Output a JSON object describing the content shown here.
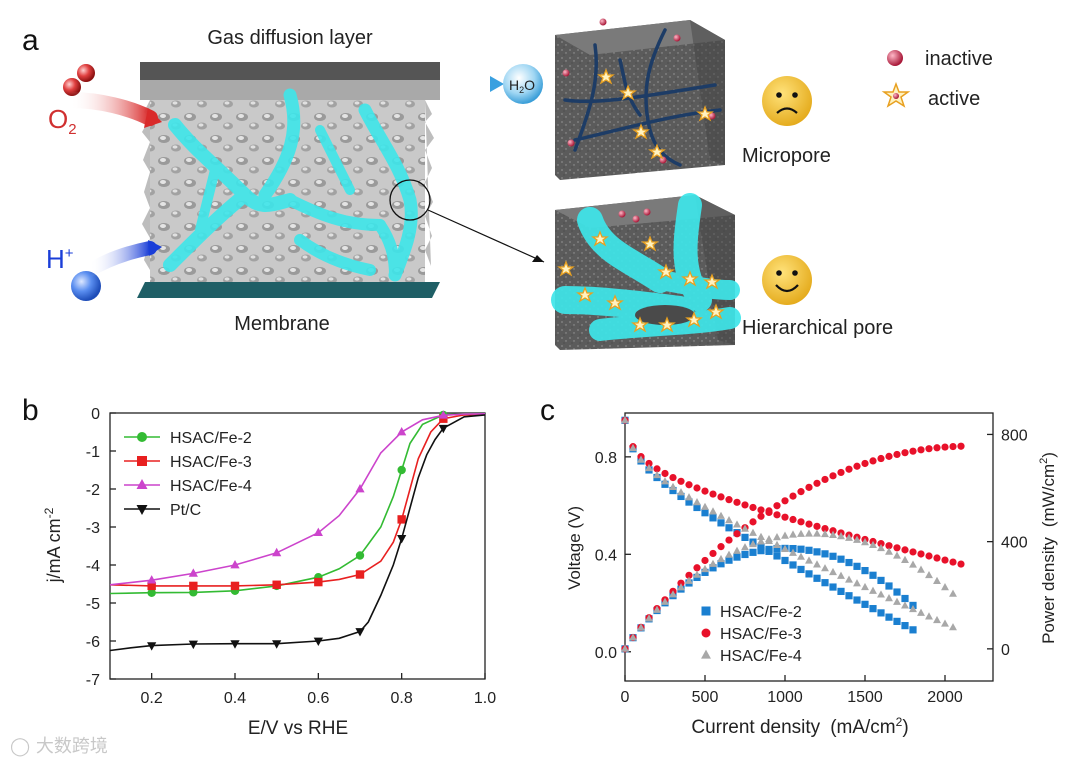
{
  "panel_a": {
    "panel_label": "a",
    "gdl_label": "Gas diffusion layer",
    "o2_label": "O",
    "o2_sub": "2",
    "h_label": "H",
    "h_sup": "+",
    "h2o_label": "H",
    "h2o_sub": "2",
    "h2o_o": "O",
    "membrane_label": "Membrane",
    "micropore_label": "Micropore",
    "hier_label": "Hierarchical pore",
    "legend_inactive": "inactive",
    "legend_active": "active",
    "colors": {
      "channel": "#3ee6ea",
      "inactive": "#c0304a",
      "active": "#e8a020",
      "face": "#f5c230"
    }
  },
  "chart_data": [
    {
      "type": "line",
      "panel_label": "b",
      "xlabel": "E/V vs RHE",
      "ylabel": "j/mA cm",
      "ylabel_sup": "-2",
      "xlim": [
        0.1,
        1.0
      ],
      "ylim": [
        -7,
        0
      ],
      "xticks": [
        "0.2",
        "0.4",
        "0.6",
        "0.8",
        "1.0"
      ],
      "yticks": [
        "0",
        "-1",
        "-2",
        "-3",
        "-4",
        "-5",
        "-6",
        "-7"
      ],
      "legend_position": "top-left",
      "series": [
        {
          "name": "HSAC/Fe-2",
          "color": "#33bb33",
          "marker": "circle",
          "x": [
            0.1,
            0.2,
            0.3,
            0.4,
            0.5,
            0.6,
            0.65,
            0.7,
            0.75,
            0.78,
            0.8,
            0.82,
            0.85,
            0.9,
            0.95,
            1.0
          ],
          "y": [
            -4.75,
            -4.73,
            -4.72,
            -4.68,
            -4.55,
            -4.32,
            -4.1,
            -3.75,
            -3.0,
            -2.2,
            -1.5,
            -0.8,
            -0.3,
            -0.05,
            -0.02,
            -0.02
          ],
          "markers": [
            0.2,
            0.3,
            0.4,
            0.5,
            0.6,
            0.7,
            0.8,
            0.9
          ]
        },
        {
          "name": "HSAC/Fe-3",
          "color": "#e82020",
          "marker": "square",
          "x": [
            0.1,
            0.2,
            0.3,
            0.4,
            0.5,
            0.6,
            0.65,
            0.7,
            0.75,
            0.78,
            0.8,
            0.82,
            0.84,
            0.87,
            0.9,
            0.95,
            1.0
          ],
          "y": [
            -4.52,
            -4.55,
            -4.55,
            -4.55,
            -4.52,
            -4.45,
            -4.38,
            -4.25,
            -3.9,
            -3.4,
            -2.8,
            -2.0,
            -1.2,
            -0.5,
            -0.15,
            -0.05,
            -0.03
          ],
          "markers": [
            0.2,
            0.3,
            0.4,
            0.5,
            0.6,
            0.7,
            0.8,
            0.9
          ]
        },
        {
          "name": "HSAC/Fe-4",
          "color": "#cc44cc",
          "marker": "triangle-up",
          "x": [
            0.1,
            0.2,
            0.3,
            0.4,
            0.5,
            0.6,
            0.65,
            0.7,
            0.75,
            0.8,
            0.85,
            0.9,
            0.95,
            1.0
          ],
          "y": [
            -4.52,
            -4.4,
            -4.22,
            -4.0,
            -3.68,
            -3.15,
            -2.7,
            -2.0,
            -1.05,
            -0.5,
            -0.18,
            -0.06,
            -0.03,
            -0.02
          ],
          "markers": [
            0.2,
            0.3,
            0.4,
            0.5,
            0.6,
            0.7,
            0.8,
            0.9
          ]
        },
        {
          "name": "Pt/C",
          "color": "#111111",
          "marker": "triangle-down",
          "x": [
            0.1,
            0.15,
            0.2,
            0.3,
            0.4,
            0.5,
            0.6,
            0.65,
            0.7,
            0.72,
            0.75,
            0.78,
            0.8,
            0.82,
            0.84,
            0.86,
            0.88,
            0.9,
            0.95,
            1.0
          ],
          "y": [
            -6.25,
            -6.18,
            -6.12,
            -6.08,
            -6.07,
            -6.07,
            -6.0,
            -5.93,
            -5.75,
            -5.5,
            -4.8,
            -4.0,
            -3.3,
            -2.5,
            -1.7,
            -1.1,
            -0.7,
            -0.4,
            -0.1,
            -0.05
          ],
          "markers": [
            0.2,
            0.3,
            0.4,
            0.5,
            0.6,
            0.7,
            0.8,
            0.9
          ]
        }
      ]
    },
    {
      "type": "scatter",
      "panel_label": "c",
      "xlabel": "Current density",
      "xlabel_unit": "(mA/cm",
      "xlabel_unit_sup": "2",
      "xlabel_unit_close": ")",
      "ylabel_left": "Voltage (V)",
      "ylabel_right": "Power density",
      "ylabel_right_unit": "(mW/cm",
      "ylabel_right_unit_sup": "2",
      "ylabel_right_unit_close": ")",
      "xlim": [
        0,
        2300
      ],
      "ylim_left": [
        -0.12,
        0.98
      ],
      "ylim_right": [
        -120,
        880
      ],
      "xticks": [
        "0",
        "500",
        "1000",
        "1500",
        "2000"
      ],
      "yticks_left": [
        "0.0",
        "0.4",
        "0.8"
      ],
      "yticks_right": [
        "0",
        "400",
        "800"
      ],
      "legend_position": "bottom-left",
      "series": [
        {
          "name": "HSAC/Fe-2",
          "color": "#1a7fd0",
          "marker": "square",
          "max_x": 1800,
          "voltage_end": 0.09
        },
        {
          "name": "HSAC/Fe-3",
          "color": "#e8112a",
          "marker": "circle",
          "max_x": 2100,
          "voltage_end": 0.36
        },
        {
          "name": "HSAC/Fe-4",
          "color": "#a8a8a8",
          "marker": "triangle-up",
          "max_x": 2050,
          "voltage_end": 0.1
        }
      ]
    }
  ],
  "watermark": "大数跨境"
}
